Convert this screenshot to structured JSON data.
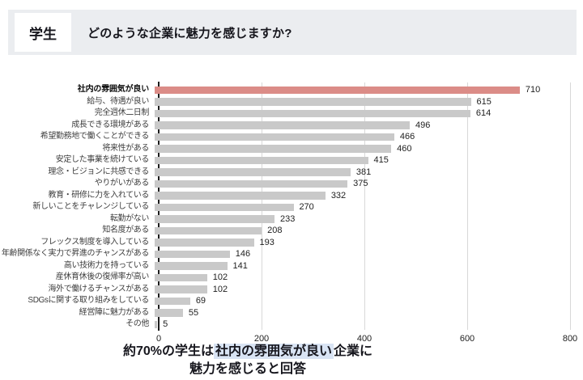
{
  "header": {
    "badge": "学生",
    "question": "どのような企業に魅力を感じますか?"
  },
  "chart_data": {
    "type": "bar",
    "orientation": "horizontal",
    "title": "どのような企業に魅力を感じますか?",
    "categories": [
      "社内の雰囲気が良い",
      "給与、待遇が良い",
      "完全週休二日制",
      "成長できる環境がある",
      "希望勤務地で働くことができる",
      "将来性がある",
      "安定した事業を続けている",
      "理念・ビジョンに共感できる",
      "やりがいがある",
      "教育・研修に力を入れている",
      "新しいことをチャレンジしている",
      "転勤がない",
      "知名度がある",
      "フレックス制度を導入している",
      "年齢関係なく実力で昇進のチャンスがある",
      "高い技術力を持っている",
      "産休育休後の復帰率が高い",
      "海外で働けるチャンスがある",
      "SDGsに関する取り組みをしている",
      "経営陣に魅力がある",
      "その他"
    ],
    "values": [
      710,
      615,
      614,
      496,
      466,
      460,
      415,
      381,
      375,
      332,
      270,
      233,
      208,
      193,
      146,
      141,
      102,
      102,
      69,
      55,
      5
    ],
    "xlim": [
      0,
      800
    ],
    "x_ticks": [
      0,
      200,
      400,
      600,
      800
    ],
    "grid": true,
    "highlight_index": 0,
    "highlight_color": "#db8c87",
    "bar_color": "#c9c9c9",
    "gridline_color": "#d8d8d8",
    "axis_color": "#1d1d1d"
  },
  "caption": {
    "line1_prefix": "約70%の学生は",
    "line1_highlight": "社内の雰囲気が良い",
    "line1_suffix": "企業に",
    "line2": "魅力を感じると回答",
    "highlight_bg": "#d9e4f4"
  },
  "colors": {
    "header_bg": "#ebedf0",
    "badge_bg": "#ffffff",
    "text_dark": "#16161d"
  }
}
